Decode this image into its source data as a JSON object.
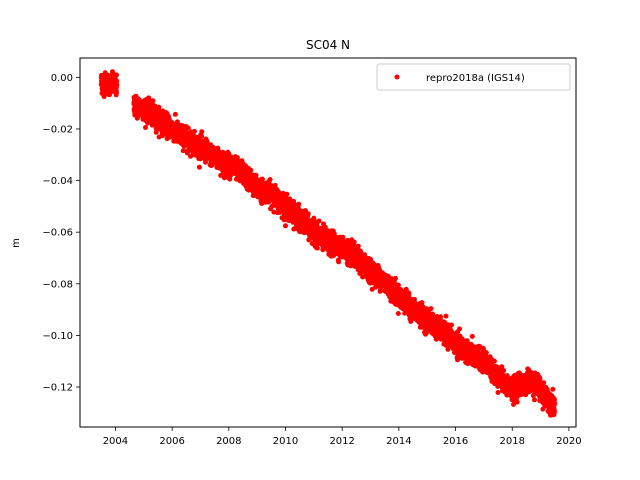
{
  "colors": {
    "marker": "#ff0000",
    "axes": "#000000",
    "legend_frame": "#cccccc"
  },
  "chart_data": {
    "type": "scatter",
    "title": "SC04 N",
    "xlabel": "",
    "ylabel": "m",
    "xlim": [
      2002.75,
      2020.25
    ],
    "ylim": [
      -0.1355,
      0.0075
    ],
    "xticks": [
      2004,
      2006,
      2008,
      2010,
      2012,
      2014,
      2016,
      2018,
      2020
    ],
    "xtick_labels": [
      "2004",
      "2006",
      "2008",
      "2010",
      "2012",
      "2014",
      "2016",
      "2018",
      "2020"
    ],
    "yticks": [
      0.0,
      -0.02,
      -0.04,
      -0.06,
      -0.08,
      -0.1,
      -0.12
    ],
    "ytick_labels": [
      "0.00",
      "−0.02",
      "−0.04",
      "−0.06",
      "−0.08",
      "−0.10",
      "−0.12"
    ],
    "grid": false,
    "legend_position": "top-right",
    "series": [
      {
        "name": "repro2018a (IGS14)",
        "color": "#ff0000",
        "marker": "dot",
        "trend": {
          "x": [
            2003.5,
            2004.0,
            2004.7,
            2005.0,
            2005.5,
            2006.0,
            2006.5,
            2007.0,
            2007.5,
            2008.0,
            2008.5,
            2009.0,
            2009.5,
            2010.0,
            2010.5,
            2011.0,
            2011.5,
            2012.0,
            2012.5,
            2013.0,
            2013.5,
            2014.0,
            2014.5,
            2015.0,
            2015.5,
            2016.0,
            2016.5,
            2017.0,
            2017.5,
            2018.0,
            2018.5,
            2018.9,
            2019.0,
            2019.5
          ],
          "y": [
            -0.002,
            -0.003,
            -0.011,
            -0.012,
            -0.016,
            -0.02,
            -0.024,
            -0.027,
            -0.031,
            -0.034,
            -0.037,
            -0.043,
            -0.045,
            -0.05,
            -0.055,
            -0.06,
            -0.064,
            -0.066,
            -0.07,
            -0.075,
            -0.079,
            -0.085,
            -0.09,
            -0.094,
            -0.098,
            -0.103,
            -0.107,
            -0.11,
            -0.116,
            -0.121,
            -0.118,
            -0.119,
            -0.122,
            -0.127
          ]
        },
        "noise": 0.002
      }
    ]
  }
}
